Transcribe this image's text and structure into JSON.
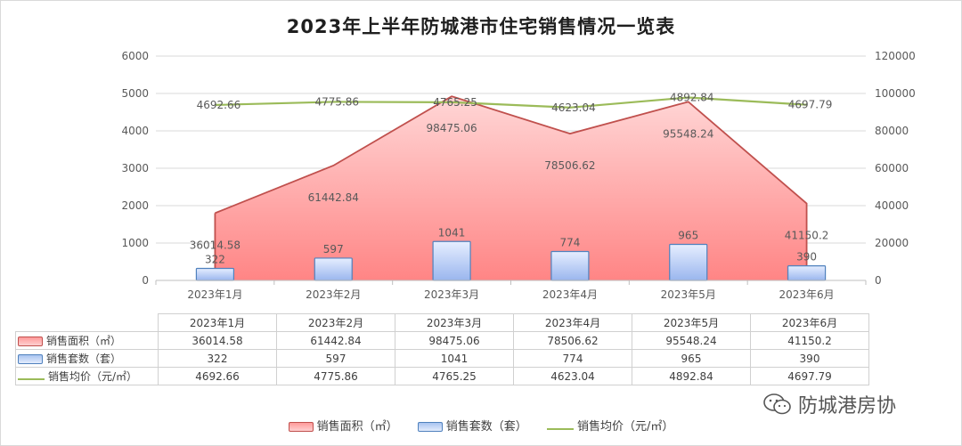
{
  "title": "2023年上半年防城港市住宅销售情况一览表",
  "chart_data": {
    "type": "bar",
    "categories": [
      "2023年1月",
      "2023年2月",
      "2023年3月",
      "2023年4月",
      "2023年5月",
      "2023年6月"
    ],
    "series": [
      {
        "name": "销售面积（㎡）",
        "kind": "area",
        "axis": "right",
        "color": "#c0504d",
        "values": [
          36014.58,
          61442.84,
          98475.06,
          78506.62,
          95548.24,
          41150.2
        ]
      },
      {
        "name": "销售套数（套）",
        "kind": "bar",
        "axis": "left",
        "color": "#4f81bd",
        "values": [
          322,
          597,
          1041,
          774,
          965,
          390
        ]
      },
      {
        "name": "销售均价（元/㎡）",
        "kind": "line",
        "axis": "left",
        "color": "#9bbb59",
        "values": [
          4692.66,
          4775.86,
          4765.25,
          4623.04,
          4892.84,
          4697.79
        ]
      }
    ],
    "left_axis": {
      "ylim": [
        0,
        6000
      ],
      "ticks": [
        "0",
        "1000",
        "2000",
        "3000",
        "4000",
        "5000",
        "6000"
      ]
    },
    "right_axis": {
      "ylim": [
        0,
        120000
      ],
      "ticks": [
        "0",
        "20000",
        "40000",
        "60000",
        "80000",
        "100000",
        "120000"
      ]
    },
    "data_labels": {
      "area": [
        "36014.58",
        "61442.84",
        "98475.06",
        "78506.62",
        "95548.24",
        "41150.2"
      ],
      "bar": [
        "322",
        "597",
        "1041",
        "774",
        "965",
        "390"
      ],
      "line": [
        "4692.66",
        "4775.86",
        "4765.25",
        "4623.04",
        "4892.84",
        "4697.79"
      ]
    },
    "grid": true,
    "legend": "bottom"
  },
  "table": {
    "rows": [
      {
        "label": "销售面积（㎡）",
        "icon": "area",
        "values": [
          "36014.58",
          "61442.84",
          "98475.06",
          "78506.62",
          "95548.24",
          "41150.2"
        ]
      },
      {
        "label": "销售套数（套）",
        "icon": "bar",
        "values": [
          "322",
          "597",
          "1041",
          "774",
          "965",
          "390"
        ]
      },
      {
        "label": "销售均价（元/㎡）",
        "icon": "line",
        "values": [
          "4692.66",
          "4775.86",
          "4765.25",
          "4623.04",
          "4892.84",
          "4697.79"
        ]
      }
    ]
  },
  "legend": {
    "items": [
      {
        "label": "销售面积（㎡）",
        "icon": "area"
      },
      {
        "label": "销售套数（套）",
        "icon": "bar"
      },
      {
        "label": "销售均价（元/㎡）",
        "icon": "line"
      }
    ]
  },
  "watermark": {
    "text": "防城港房协",
    "icon": "wechat-icon"
  }
}
